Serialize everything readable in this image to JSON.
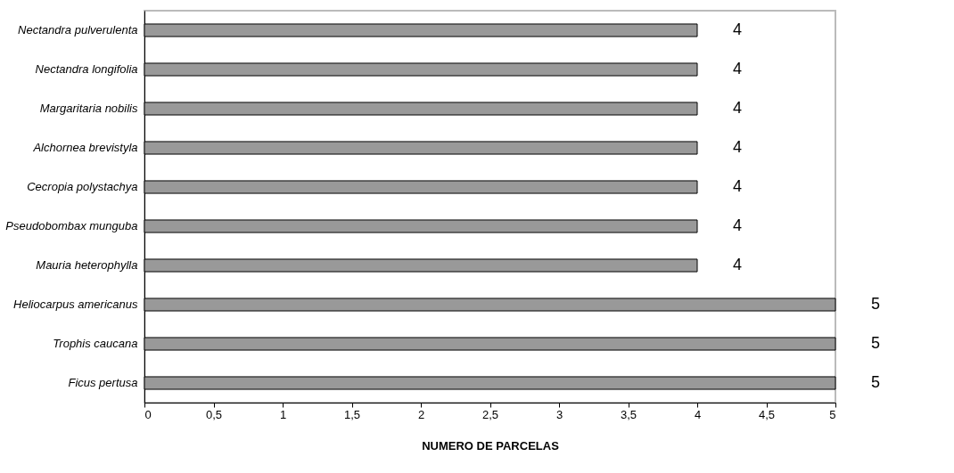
{
  "chart_data": {
    "type": "bar",
    "orientation": "horizontal",
    "xlabel": "NUMERO DE PARCELAS",
    "categories": [
      "Nectandra pulverulenta",
      "Nectandra longifolia",
      "Margaritaria nobilis",
      "Alchornea brevistyla",
      "Cecropia polystachya",
      "Pseudobombax munguba",
      "Mauria heterophylla",
      "Heliocarpus americanus",
      "Trophis caucana",
      "Ficus pertusa"
    ],
    "values": [
      4,
      4,
      4,
      4,
      4,
      4,
      4,
      5,
      5,
      5
    ],
    "color": "#999999",
    "xlim": [
      0,
      5
    ],
    "xticks": [
      0,
      {
        "value": 0.5,
        "label": "0,5"
      },
      1,
      {
        "value": 1.5,
        "label": "1,5"
      },
      2,
      {
        "value": 2.5,
        "label": "2,5"
      },
      3,
      {
        "value": 3.5,
        "label": "3,5"
      },
      4,
      {
        "value": 4.5,
        "label": "4,5"
      },
      5
    ],
    "data_labels": true,
    "grid": false
  }
}
